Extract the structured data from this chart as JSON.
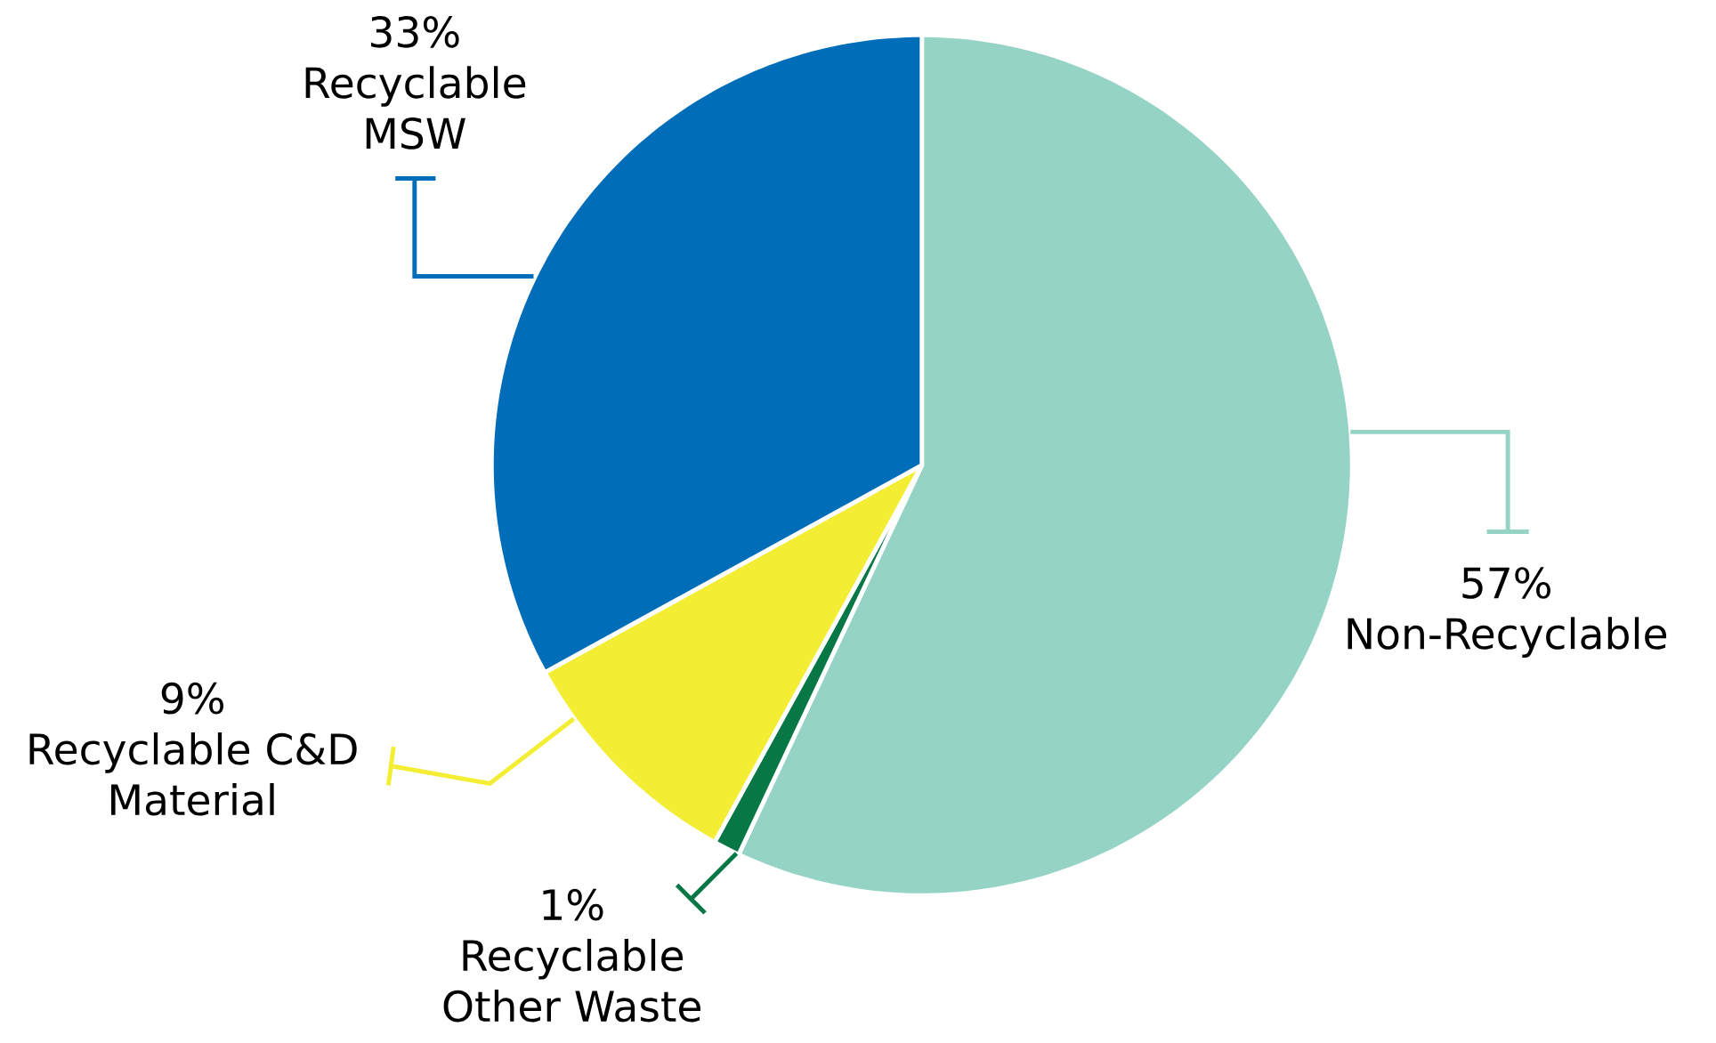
{
  "chart_data": {
    "type": "pie",
    "categories": [
      "Non-Recyclable",
      "Recyclable Other Waste",
      "Recyclable C&D Material",
      "Recyclable MSW"
    ],
    "values": [
      57,
      1,
      9,
      33
    ],
    "colors": [
      "#95d4c4",
      "#077845",
      "#f3ee33",
      "#006db8"
    ],
    "value_labels": [
      "57%",
      "1%",
      "9%",
      "33%"
    ]
  }
}
